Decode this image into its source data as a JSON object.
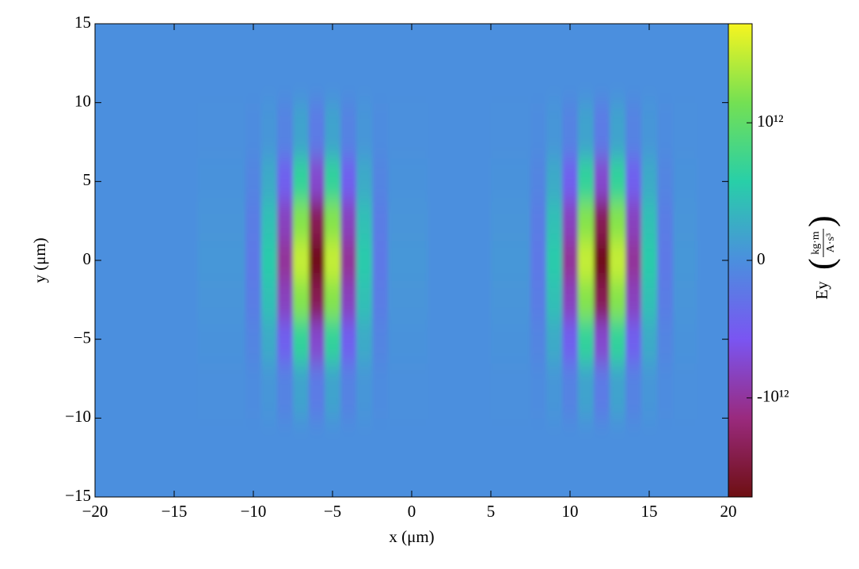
{
  "chart_data": {
    "type": "heatmap",
    "xlabel": "x  (μm)",
    "ylabel": "y  (μm)",
    "colorbar_label": "Ey",
    "colorbar_unit_num": "kg·m",
    "colorbar_unit_den": "A·s³",
    "xlim": [
      -20,
      20
    ],
    "ylim": [
      -15,
      15
    ],
    "xticks": [
      {
        "value": -20,
        "label": "−20"
      },
      {
        "value": -15,
        "label": "−15"
      },
      {
        "value": -10,
        "label": "−10"
      },
      {
        "value": -5,
        "label": "−5"
      },
      0,
      5,
      10,
      15,
      20
    ],
    "yticks": [
      {
        "value": -15,
        "label": "−15"
      },
      {
        "value": -10,
        "label": "−10"
      },
      {
        "value": -5,
        "label": "−5"
      },
      0,
      5,
      10,
      15
    ],
    "clim": [
      -1720000000000.0,
      1720000000000.0
    ],
    "cticks": [
      {
        "value": -1000000000000.0,
        "label": "-10¹²"
      },
      0,
      {
        "value": 1000000000000.0,
        "label": "10¹²"
      }
    ],
    "colormap": [
      "#6e0f12",
      "#9a2a7e",
      "#7a55f2",
      "#4b8fde",
      "#28cfa8",
      "#74e053",
      "#f6f520"
    ],
    "x": [
      -16,
      -11,
      -10,
      -9,
      -8,
      -7,
      -6,
      -5,
      -4,
      -3,
      -2,
      -1,
      3,
      7,
      8,
      9,
      10,
      11,
      12,
      13,
      14,
      15,
      16,
      17,
      19
    ],
    "y": [
      -12,
      -8,
      -5,
      -2.5,
      0,
      2.5,
      5,
      8,
      12
    ],
    "z": [
      [
        0,
        0,
        0,
        0,
        0,
        0,
        0,
        0,
        0,
        0,
        0,
        0,
        0,
        0,
        0,
        0,
        0,
        0,
        0,
        0,
        0,
        0,
        0,
        0,
        0
      ],
      [
        0,
        8000000000.0,
        -26000000000.0,
        65000000000.0,
        -120000000000.0,
        180000000000.0,
        -200000000000.0,
        180000000000.0,
        -120000000000.0,
        65000000000.0,
        -26000000000.0,
        8000000000.0,
        0,
        8000000000.0,
        -26000000000.0,
        65000000000.0,
        -120000000000.0,
        180000000000.0,
        -200000000000.0,
        180000000000.0,
        -120000000000.0,
        65000000000.0,
        -26000000000.0,
        8000000000.0,
        0
      ],
      [
        0,
        30000000000.0,
        -97000000000.0,
        240000000000.0,
        -450000000000.0,
        660000000000.0,
        -750000000000.0,
        660000000000.0,
        -450000000000.0,
        240000000000.0,
        -97000000000.0,
        30000000000.0,
        0,
        30000000000.0,
        -97000000000.0,
        240000000000.0,
        -450000000000.0,
        660000000000.0,
        -750000000000.0,
        660000000000.0,
        -450000000000.0,
        240000000000.0,
        -97000000000.0,
        30000000000.0,
        0
      ],
      [
        0,
        55000000000.0,
        -180000000000.0,
        440000000000.0,
        -830000000000.0,
        1220000000000.0,
        -1380000000000.0,
        1220000000000.0,
        -830000000000.0,
        440000000000.0,
        -180000000000.0,
        55000000000.0,
        0,
        55000000000.0,
        -180000000000.0,
        440000000000.0,
        -830000000000.0,
        1220000000000.0,
        -1380000000000.0,
        1220000000000.0,
        -830000000000.0,
        440000000000.0,
        -180000000000.0,
        55000000000.0,
        0
      ],
      [
        0,
        68000000000.0,
        -220000000000.0,
        540000000000.0,
        -1020000000000.0,
        1500000000000.0,
        -1700000000000.0,
        1500000000000.0,
        -1020000000000.0,
        540000000000.0,
        -220000000000.0,
        68000000000.0,
        0,
        68000000000.0,
        -220000000000.0,
        540000000000.0,
        -1020000000000.0,
        1500000000000.0,
        -1700000000000.0,
        1500000000000.0,
        -1020000000000.0,
        540000000000.0,
        -220000000000.0,
        68000000000.0,
        0
      ],
      [
        0,
        55000000000.0,
        -180000000000.0,
        440000000000.0,
        -830000000000.0,
        1220000000000.0,
        -1380000000000.0,
        1220000000000.0,
        -830000000000.0,
        440000000000.0,
        -180000000000.0,
        55000000000.0,
        0,
        55000000000.0,
        -180000000000.0,
        440000000000.0,
        -830000000000.0,
        1220000000000.0,
        -1380000000000.0,
        1220000000000.0,
        -830000000000.0,
        440000000000.0,
        -180000000000.0,
        55000000000.0,
        0
      ],
      [
        0,
        30000000000.0,
        -97000000000.0,
        240000000000.0,
        -450000000000.0,
        660000000000.0,
        -750000000000.0,
        660000000000.0,
        -450000000000.0,
        240000000000.0,
        -97000000000.0,
        30000000000.0,
        0,
        30000000000.0,
        -97000000000.0,
        240000000000.0,
        -450000000000.0,
        660000000000.0,
        -750000000000.0,
        660000000000.0,
        -450000000000.0,
        240000000000.0,
        -97000000000.0,
        30000000000.0,
        0
      ],
      [
        0,
        8000000000.0,
        -26000000000.0,
        65000000000.0,
        -120000000000.0,
        180000000000.0,
        -200000000000.0,
        180000000000.0,
        -120000000000.0,
        65000000000.0,
        -26000000000.0,
        8000000000.0,
        0,
        8000000000.0,
        -26000000000.0,
        65000000000.0,
        -120000000000.0,
        180000000000.0,
        -200000000000.0,
        180000000000.0,
        -120000000000.0,
        65000000000.0,
        -26000000000.0,
        8000000000.0,
        0
      ],
      [
        0,
        0,
        0,
        0,
        0,
        0,
        0,
        0,
        0,
        0,
        0,
        0,
        0,
        0,
        0,
        0,
        0,
        0,
        0,
        0,
        0,
        0,
        0,
        0,
        0
      ]
    ]
  }
}
